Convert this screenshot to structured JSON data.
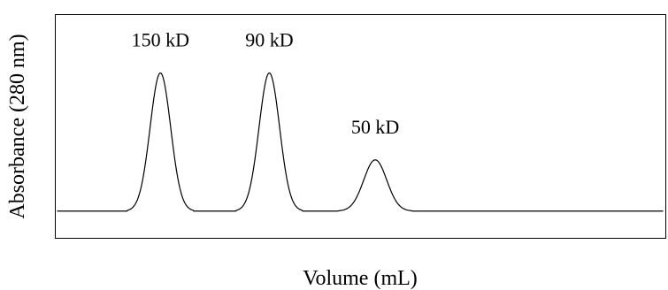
{
  "chart_data": {
    "type": "line",
    "xlabel": "Volume (mL)",
    "ylabel": "Absorbance (280 nm)",
    "grid": false,
    "axis_ticks": false,
    "x_range": [
      0,
      100
    ],
    "y_range": [
      0,
      1
    ],
    "baseline": 0.12,
    "series": [
      {
        "peaks": [
          {
            "label": "150 kD",
            "center": 17,
            "height": 0.62,
            "width": 1.7
          },
          {
            "label": "90 kD",
            "center": 35,
            "height": 0.62,
            "width": 1.7
          },
          {
            "label": "50 kD",
            "center": 52.5,
            "height": 0.23,
            "width": 1.9
          }
        ]
      }
    ],
    "colors": {
      "trace": "#000000",
      "frame": "#000000",
      "background": "#ffffff"
    }
  }
}
